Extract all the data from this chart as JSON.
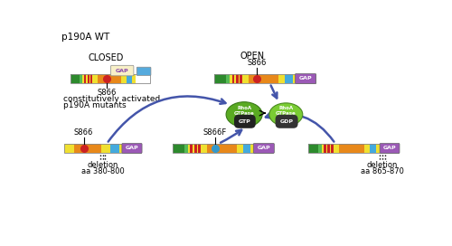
{
  "title": "p190A WT",
  "closed_label": "CLOSED",
  "open_label": "OPEN",
  "s866_label": "S866",
  "s866f_label": "S866F",
  "const_label1": "constitutively activated",
  "const_label2": "p190A mutants",
  "del1_label1": "deletion",
  "del1_label2": "aa 380-800",
  "del2_label1": "deletion",
  "del2_label2": "aa 865-870",
  "gap_color": "#9b59b6",
  "green_dark": "#2d8a2d",
  "green_mid": "#55bb55",
  "yellow": "#f0e030",
  "orange": "#e8881a",
  "red_stripe": "#cc2222",
  "blue_seg": "#44aadd",
  "yellow_end": "#f0e030",
  "arrow_color": "#4455aa",
  "rhoa_color1": "#5aaa22",
  "rhoa_color2": "#7acc33",
  "dot_red": "#cc2222",
  "dot_blue": "#3399cc",
  "gap_text_color": "#ffffff",
  "fold_gap_text": "#8844aa",
  "fold_bg": "#f8f0c8",
  "blue_fold": "#55aadd",
  "border_color": "#888888",
  "gtp_bg": "#222222",
  "gdp_bg": "#333333"
}
